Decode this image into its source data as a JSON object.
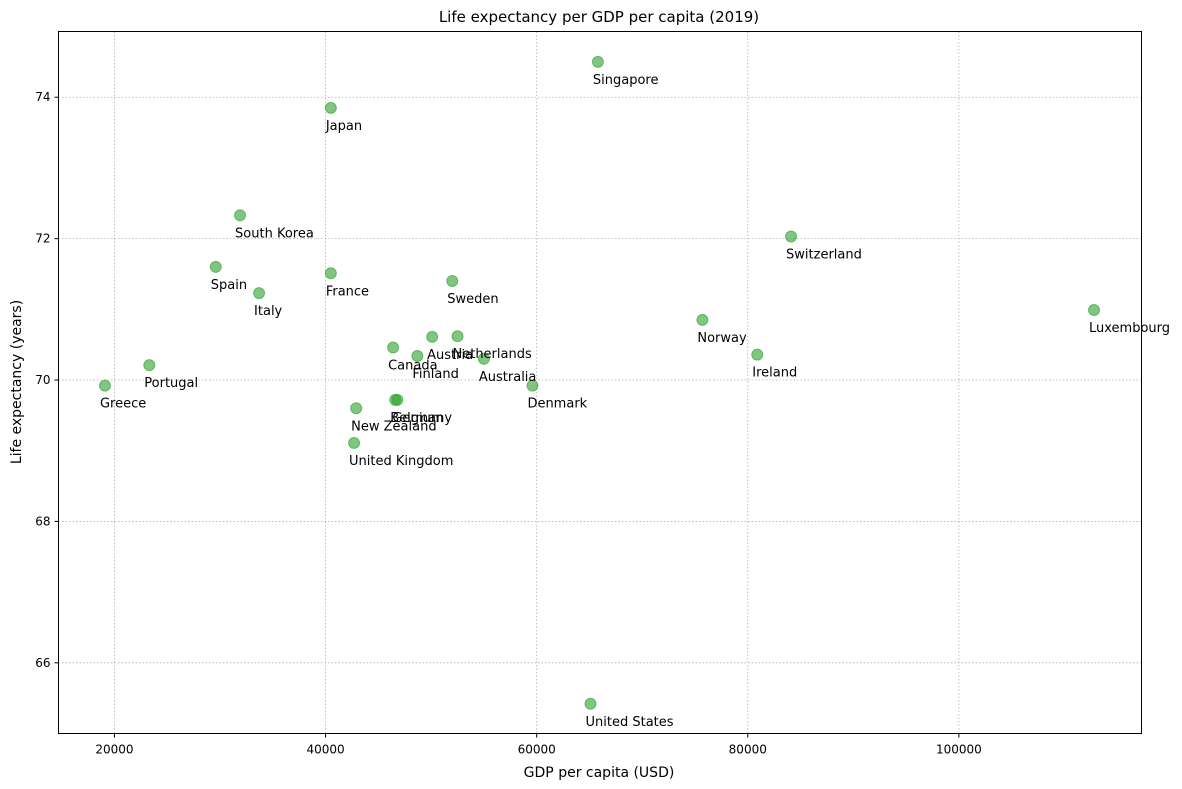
{
  "chart_data": {
    "type": "scatter",
    "title": "Life expectancy per GDP per capita (2019)",
    "xlabel": "GDP per capita (USD)",
    "ylabel": "Life expectancy (years)",
    "xlim": [
      14700,
      117300
    ],
    "ylim": [
      65.0,
      74.93
    ],
    "xticks": [
      20000,
      40000,
      60000,
      80000,
      100000
    ],
    "yticks": [
      66,
      68,
      70,
      72,
      74
    ],
    "grid": true,
    "marker_color": "#2ca02c",
    "points": [
      {
        "label": "Singapore",
        "x": 65800,
        "y": 74.5
      },
      {
        "label": "Japan",
        "x": 40500,
        "y": 73.85
      },
      {
        "label": "South Korea",
        "x": 31900,
        "y": 72.33
      },
      {
        "label": "Switzerland",
        "x": 84100,
        "y": 72.03
      },
      {
        "label": "Spain",
        "x": 29600,
        "y": 71.6
      },
      {
        "label": "France",
        "x": 40500,
        "y": 71.51
      },
      {
        "label": "Sweden",
        "x": 52000,
        "y": 71.4
      },
      {
        "label": "Italy",
        "x": 33700,
        "y": 71.23
      },
      {
        "label": "Luxembourg",
        "x": 112800,
        "y": 70.99
      },
      {
        "label": "Norway",
        "x": 75700,
        "y": 70.85
      },
      {
        "label": "Austria",
        "x": 50100,
        "y": 70.61
      },
      {
        "label": "Netherlands",
        "x": 52500,
        "y": 70.62
      },
      {
        "label": "Canada",
        "x": 46400,
        "y": 70.46
      },
      {
        "label": "Ireland",
        "x": 80900,
        "y": 70.36
      },
      {
        "label": "Finland",
        "x": 48700,
        "y": 70.34
      },
      {
        "label": "Australia",
        "x": 55000,
        "y": 70.3
      },
      {
        "label": "Portugal",
        "x": 23300,
        "y": 70.21
      },
      {
        "label": "Greece",
        "x": 19100,
        "y": 69.92
      },
      {
        "label": "Denmark",
        "x": 59600,
        "y": 69.92
      },
      {
        "label": "Belgium",
        "x": 46600,
        "y": 69.72
      },
      {
        "label": "Germany",
        "x": 46800,
        "y": 69.72
      },
      {
        "label": "New Zealand",
        "x": 42900,
        "y": 69.6
      },
      {
        "label": "United Kingdom",
        "x": 42700,
        "y": 69.11
      },
      {
        "label": "United States",
        "x": 65100,
        "y": 65.42
      }
    ]
  }
}
